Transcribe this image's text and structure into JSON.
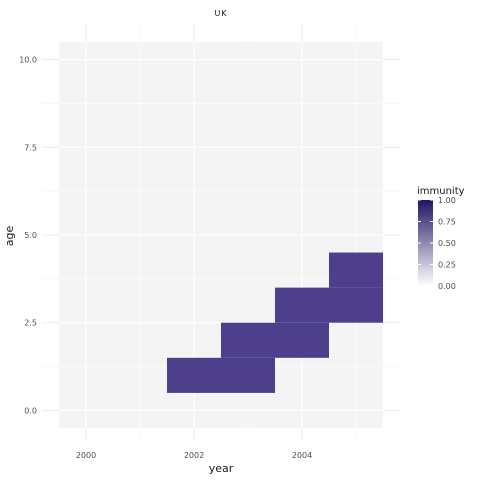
{
  "chart_data": {
    "type": "heatmap",
    "facet_label": "UK",
    "xlabel": "year",
    "ylabel": "age",
    "xlim": [
      1999.5,
      2005.5
    ],
    "ylim": [
      -0.5,
      10.5
    ],
    "x_breaks": [
      2000,
      2002,
      2004
    ],
    "x_tick_labels": [
      "2000",
      "2002",
      "2004"
    ],
    "y_breaks": [
      0,
      2.5,
      5,
      7.5,
      10
    ],
    "y_tick_labels": [
      "0.0",
      "2.5",
      "5.0",
      "7.5",
      "10.0"
    ],
    "tiles": [
      {
        "year": 2002,
        "age": 1,
        "immunity": 1.0
      },
      {
        "year": 2003,
        "age": 1,
        "immunity": 1.0
      },
      {
        "year": 2003,
        "age": 2,
        "immunity": 1.0
      },
      {
        "year": 2004,
        "age": 2,
        "immunity": 1.0
      },
      {
        "year": 2004,
        "age": 3,
        "immunity": 1.0
      },
      {
        "year": 2005,
        "age": 3,
        "immunity": 1.0
      },
      {
        "year": 2005,
        "age": 4,
        "immunity": 1.0
      }
    ],
    "legend": {
      "title": "immunity",
      "labels": [
        "1.00",
        "0.75",
        "0.50",
        "0.25",
        "0.00"
      ],
      "values": [
        1.0,
        0.75,
        0.5,
        0.25,
        0.0
      ],
      "placement": "right",
      "low_color": "#ffffff",
      "high_color": "#1f1564"
    },
    "grid": true,
    "tile_color": "#4d3f8c"
  }
}
